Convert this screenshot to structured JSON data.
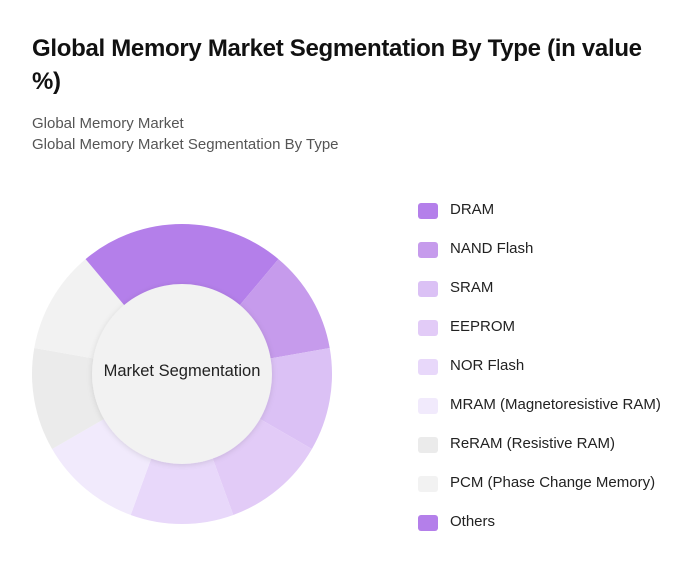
{
  "header": {
    "title": "Global Memory Market Segmentation By Type (in value %)",
    "subtitle_line1": "Global Memory Market",
    "subtitle_line2": "Global Memory Market Segmentation By Type"
  },
  "chart_data": {
    "type": "pie",
    "title": "Global Memory Market Segmentation By Type (in value %)",
    "center_label": "Market Segmentation",
    "donut": true,
    "legend_position": "right",
    "categories": [
      "DRAM",
      "NAND Flash",
      "SRAM",
      "EEPROM",
      "NOR Flash",
      "MRAM (Magnetoresistive RAM)",
      "ReRAM (Resistive RAM)",
      "PCM (Phase Change Memory)",
      "Others"
    ],
    "values": [
      11.1,
      11.1,
      11.1,
      11.1,
      11.1,
      11.1,
      11.1,
      11.1,
      11.1
    ],
    "colors": [
      "#b47fea",
      "#c69bec",
      "#dbc1f5",
      "#e2cbf7",
      "#e8d8fa",
      "#f1eafc",
      "#ebebeb",
      "#f2f2f2",
      "#b47fea"
    ]
  },
  "legend": {
    "items": [
      {
        "label": "DRAM",
        "color": "#b47fea"
      },
      {
        "label": "NAND Flash",
        "color": "#c69bec"
      },
      {
        "label": "SRAM",
        "color": "#dbc1f5"
      },
      {
        "label": "EEPROM",
        "color": "#e2cbf7"
      },
      {
        "label": "NOR Flash",
        "color": "#e8d8fa"
      },
      {
        "label": "MRAM (Magnetoresistive RAM)",
        "color": "#f1eafc"
      },
      {
        "label": "ReRAM (Resistive RAM)",
        "color": "#ebebeb"
      },
      {
        "label": "PCM (Phase Change Memory)",
        "color": "#f2f2f2"
      },
      {
        "label": "Others",
        "color": "#b47fea"
      }
    ]
  }
}
